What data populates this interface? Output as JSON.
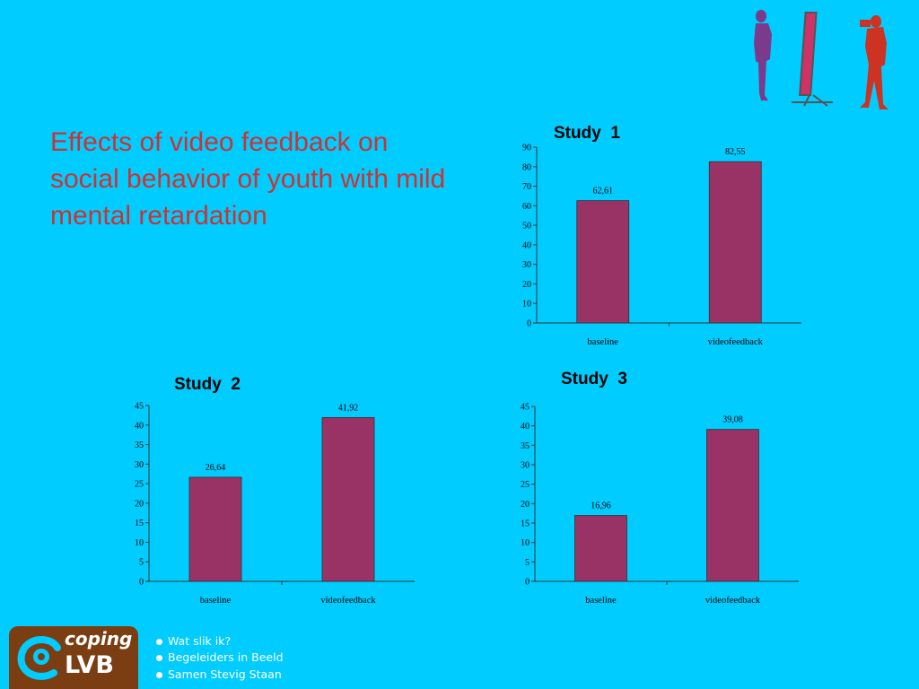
{
  "slide": {
    "title": "Effects of video feedback on social behavior of youth with mild mental retardation"
  },
  "colors": {
    "background": "#00CCFF",
    "bar": "#993366",
    "title": "#CC3333",
    "logo_bg": "#7a3e12"
  },
  "chart_data": [
    {
      "type": "bar",
      "title": "Study  1",
      "categories": [
        "baseline",
        "videofeedback"
      ],
      "values": [
        62.61,
        82.55
      ],
      "value_labels": [
        "62,61",
        "82,55"
      ],
      "ylim": [
        0,
        90
      ],
      "yticks": [
        "0",
        "10",
        "20",
        "30",
        "40",
        "50",
        "60",
        "70",
        "80",
        "90"
      ],
      "grid": false,
      "legend": "none"
    },
    {
      "type": "bar",
      "title": "Study  2",
      "categories": [
        "baseline",
        "videofeedback"
      ],
      "values": [
        26.64,
        41.92
      ],
      "value_labels": [
        "26,64",
        "41,92"
      ],
      "ylim": [
        0,
        45
      ],
      "yticks": [
        "0",
        "5",
        "10",
        "15",
        "20",
        "25",
        "30",
        "35",
        "40",
        "45"
      ],
      "grid": false,
      "legend": "none"
    },
    {
      "type": "bar",
      "title": "Study  3",
      "categories": [
        "baseline",
        "videofeedback"
      ],
      "values": [
        16.96,
        39.08
      ],
      "value_labels": [
        "16,96",
        "39,08"
      ],
      "ylim": [
        0,
        45
      ],
      "yticks": [
        "0",
        "5",
        "10",
        "15",
        "20",
        "25",
        "30",
        "35",
        "40",
        "45"
      ],
      "grid": false,
      "legend": "none"
    }
  ],
  "logo": {
    "word1": "coping",
    "word2": "LVB",
    "icon": "coping-lvb-logo-icon",
    "taglines": [
      "Wat slik ik?",
      "Begeleiders in Beeld",
      "Samen Stevig Staan"
    ]
  },
  "decoration": {
    "icon": "mirror-camera-figures-icon"
  }
}
